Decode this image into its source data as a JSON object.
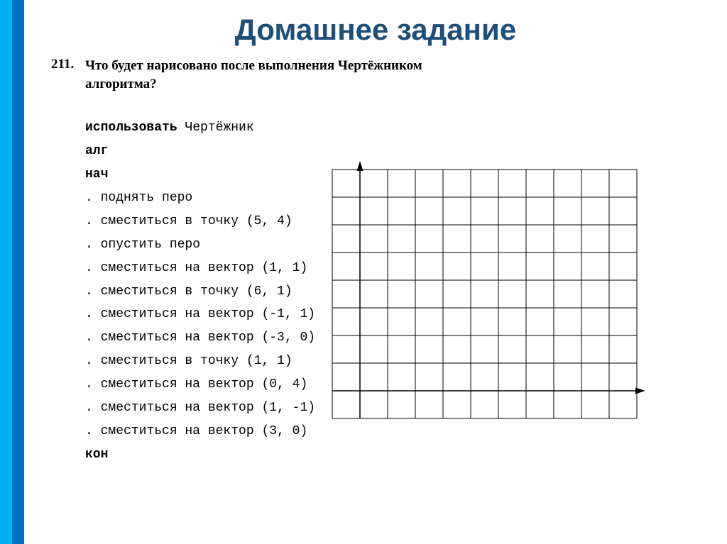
{
  "title": "Домашнее задание",
  "question": {
    "number": "211.",
    "text_line1": "Что будет нарисовано после выполнения Чертёжником",
    "text_line2": "алгоритма?"
  },
  "code": {
    "use": "использовать",
    "use_arg": "Чертёжник",
    "alg": "алг",
    "nach": "нач",
    "lines": [
      ". поднять перо",
      ". сместиться в точку (5, 4)",
      ". опустить перо",
      ". сместиться на вектор (1, 1)",
      ". сместиться в точку (6, 1)",
      ". сместиться на вектор (-1, 1)",
      ". сместиться на вектор (-3, 0)",
      ". сместиться в точку (1, 1)",
      ". сместиться на вектор (0, 4)",
      ". сместиться на вектор (1, -1)",
      ". сместиться на вектор (3, 0)"
    ],
    "kon": "кон"
  },
  "grid": {
    "cols": 11,
    "rows": 9,
    "cell": 39,
    "origin_col": 1,
    "origin_row": 8,
    "stroke": "#000000",
    "grid_width": 1,
    "axis_width": 1.5,
    "arrow_size": 9
  },
  "colors": {
    "side_left": "#00b0f0",
    "side_right": "#0070c0",
    "title": "#1f4e79"
  }
}
